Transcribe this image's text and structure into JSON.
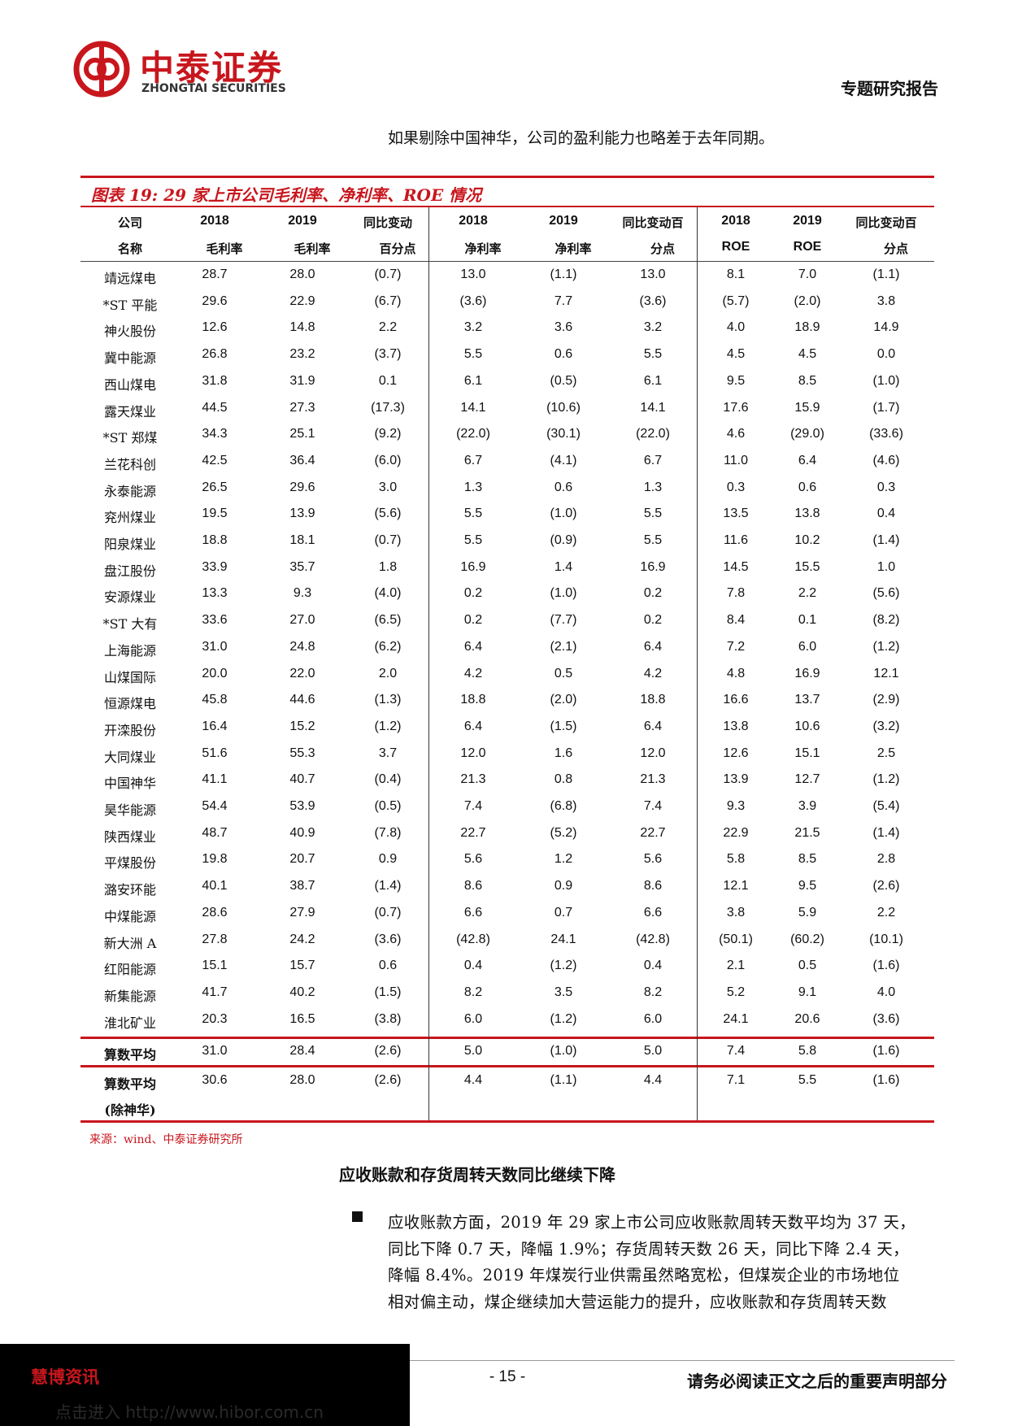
{
  "header": {
    "brand_cn": "中泰证券",
    "brand_en": "ZHONGTAI SECURITIES",
    "report_type": "专题研究报告"
  },
  "intro": "如果剔除中国神华，公司的盈利能力也略差于去年同期。",
  "table": {
    "title": "图表 19:   29 家上市公司毛利率、净利率、ROE 情况",
    "header": [
      [
        "公司",
        "名称"
      ],
      [
        "2018",
        "毛利率"
      ],
      [
        "2019",
        "毛利率"
      ],
      [
        "同比变动",
        "百分点"
      ],
      [
        "2018",
        "净利率"
      ],
      [
        "2019",
        "净利率"
      ],
      [
        "同比变动百",
        "分点"
      ],
      [
        "2018",
        "ROE"
      ],
      [
        "2019",
        "ROE"
      ],
      [
        "同比变动百",
        "分点"
      ]
    ],
    "rows": [
      [
        "靖远煤电",
        "28.7",
        "28.0",
        "(0.7)",
        "13.0",
        "(1.1)",
        "13.0",
        "8.1",
        "7.0",
        "(1.1)"
      ],
      [
        "*ST 平能",
        "29.6",
        "22.9",
        "(6.7)",
        "(3.6)",
        "7.7",
        "(3.6)",
        "(5.7)",
        "(2.0)",
        "3.8"
      ],
      [
        "神火股份",
        "12.6",
        "14.8",
        "2.2",
        "3.2",
        "3.6",
        "3.2",
        "4.0",
        "18.9",
        "14.9"
      ],
      [
        "冀中能源",
        "26.8",
        "23.2",
        "(3.7)",
        "5.5",
        "0.6",
        "5.5",
        "4.5",
        "4.5",
        "0.0"
      ],
      [
        "西山煤电",
        "31.8",
        "31.9",
        "0.1",
        "6.1",
        "(0.5)",
        "6.1",
        "9.5",
        "8.5",
        "(1.0)"
      ],
      [
        "露天煤业",
        "44.5",
        "27.3",
        "(17.3)",
        "14.1",
        "(10.6)",
        "14.1",
        "17.6",
        "15.9",
        "(1.7)"
      ],
      [
        "*ST 郑煤",
        "34.3",
        "25.1",
        "(9.2)",
        "(22.0)",
        "(30.1)",
        "(22.0)",
        "4.6",
        "(29.0)",
        "(33.6)"
      ],
      [
        "兰花科创",
        "42.5",
        "36.4",
        "(6.0)",
        "6.7",
        "(4.1)",
        "6.7",
        "11.0",
        "6.4",
        "(4.6)"
      ],
      [
        "永泰能源",
        "26.5",
        "29.6",
        "3.0",
        "1.3",
        "0.6",
        "1.3",
        "0.3",
        "0.6",
        "0.3"
      ],
      [
        "兖州煤业",
        "19.5",
        "13.9",
        "(5.6)",
        "5.5",
        "(1.0)",
        "5.5",
        "13.5",
        "13.8",
        "0.4"
      ],
      [
        "阳泉煤业",
        "18.8",
        "18.1",
        "(0.7)",
        "5.5",
        "(0.9)",
        "5.5",
        "11.6",
        "10.2",
        "(1.4)"
      ],
      [
        "盘江股份",
        "33.9",
        "35.7",
        "1.8",
        "16.9",
        "1.4",
        "16.9",
        "14.5",
        "15.5",
        "1.0"
      ],
      [
        "安源煤业",
        "13.3",
        "9.3",
        "(4.0)",
        "0.2",
        "(1.0)",
        "0.2",
        "7.8",
        "2.2",
        "(5.6)"
      ],
      [
        "*ST 大有",
        "33.6",
        "27.0",
        "(6.5)",
        "0.2",
        "(7.7)",
        "0.2",
        "8.4",
        "0.1",
        "(8.2)"
      ],
      [
        "上海能源",
        "31.0",
        "24.8",
        "(6.2)",
        "6.4",
        "(2.1)",
        "6.4",
        "7.2",
        "6.0",
        "(1.2)"
      ],
      [
        "山煤国际",
        "20.0",
        "22.0",
        "2.0",
        "4.2",
        "0.5",
        "4.2",
        "4.8",
        "16.9",
        "12.1"
      ],
      [
        "恒源煤电",
        "45.8",
        "44.6",
        "(1.3)",
        "18.8",
        "(2.0)",
        "18.8",
        "16.6",
        "13.7",
        "(2.9)"
      ],
      [
        "开滦股份",
        "16.4",
        "15.2",
        "(1.2)",
        "6.4",
        "(1.5)",
        "6.4",
        "13.8",
        "10.6",
        "(3.2)"
      ],
      [
        "大同煤业",
        "51.6",
        "55.3",
        "3.7",
        "12.0",
        "1.6",
        "12.0",
        "12.6",
        "15.1",
        "2.5"
      ],
      [
        "中国神华",
        "41.1",
        "40.7",
        "(0.4)",
        "21.3",
        "0.8",
        "21.3",
        "13.9",
        "12.7",
        "(1.2)"
      ],
      [
        "昊华能源",
        "54.4",
        "53.9",
        "(0.5)",
        "7.4",
        "(6.8)",
        "7.4",
        "9.3",
        "3.9",
        "(5.4)"
      ],
      [
        "陕西煤业",
        "48.7",
        "40.9",
        "(7.8)",
        "22.7",
        "(5.2)",
        "22.7",
        "22.9",
        "21.5",
        "(1.4)"
      ],
      [
        "平煤股份",
        "19.8",
        "20.7",
        "0.9",
        "5.6",
        "1.2",
        "5.6",
        "5.8",
        "8.5",
        "2.8"
      ],
      [
        "潞安环能",
        "40.1",
        "38.7",
        "(1.4)",
        "8.6",
        "0.9",
        "8.6",
        "12.1",
        "9.5",
        "(2.6)"
      ],
      [
        "中煤能源",
        "28.6",
        "27.9",
        "(0.7)",
        "6.6",
        "0.7",
        "6.6",
        "3.8",
        "5.9",
        "2.2"
      ],
      [
        "新大洲 A",
        "27.8",
        "24.2",
        "(3.6)",
        "(42.8)",
        "24.1",
        "(42.8)",
        "(50.1)",
        "(60.2)",
        "(10.1)"
      ],
      [
        "红阳能源",
        "15.1",
        "15.7",
        "0.6",
        "0.4",
        "(1.2)",
        "0.4",
        "2.1",
        "0.5",
        "(1.6)"
      ],
      [
        "新集能源",
        "41.7",
        "40.2",
        "(1.5)",
        "8.2",
        "3.5",
        "8.2",
        "5.2",
        "9.1",
        "4.0"
      ],
      [
        "淮北矿业",
        "20.3",
        "16.5",
        "(3.8)",
        "6.0",
        "(1.2)",
        "6.0",
        "24.1",
        "20.6",
        "(3.6)"
      ]
    ],
    "summary": [
      {
        "name": [
          "算数平均"
        ],
        "cells": [
          "31.0",
          "28.4",
          "(2.6)",
          "5.0",
          "(1.0)",
          "5.0",
          "7.4",
          "5.8",
          "(1.6)"
        ]
      },
      {
        "name": [
          "算数平均",
          "(除神华)"
        ],
        "cells": [
          "30.6",
          "28.0",
          "(2.6)",
          "4.4",
          "(1.1)",
          "4.4",
          "7.1",
          "5.5",
          "(1.6)"
        ]
      }
    ],
    "source": "来源：wind、中泰证券研究所"
  },
  "section_heading": "应收账款和存货周转天数同比继续下降",
  "bullet_lines": [
    "应收账款方面，2019 年 29 家上市公司应收账款周转天数平均为 37 天，",
    "同比下降 0.7 天，降幅 1.9%；存货周转天数 26 天，同比下降 2.4 天，",
    "降幅 8.4%。2019 年煤炭行业供需虽然略宽松，但煤炭企业的市场地位",
    "相对偏主动，煤企继续加大营运能力的提升，应收账款和存货周转天数"
  ],
  "footer": {
    "page": "- 15 -",
    "notice": "请务必阅读正文之后的重要声明部分"
  },
  "banner": {
    "name": "慧博资讯",
    "link": "点击进入  http://www.hibor.com.cn"
  }
}
